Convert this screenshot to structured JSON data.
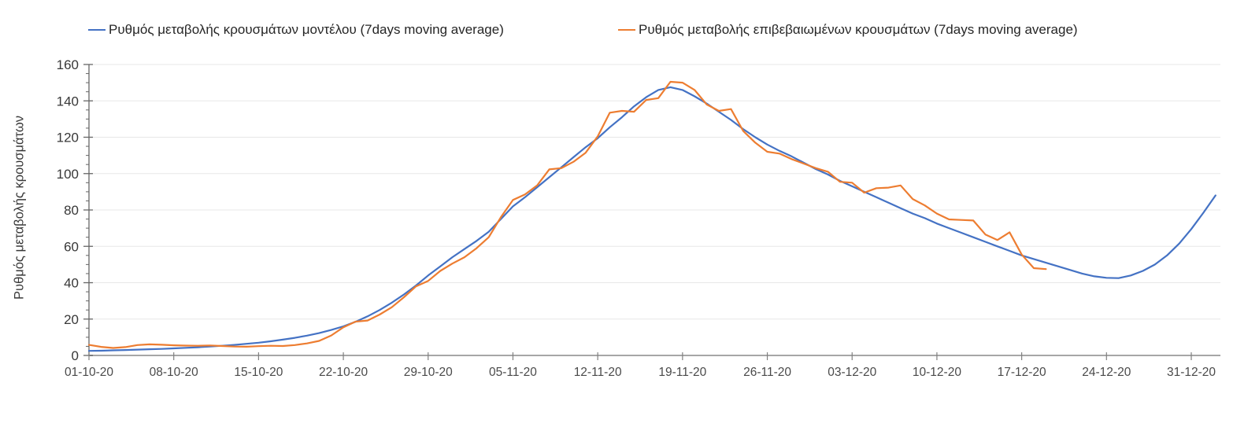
{
  "chart_data": {
    "type": "line",
    "title": "",
    "xlabel": "",
    "ylabel": "Ρυθμός μεταβολής κρουσμάτων",
    "ylim": [
      0,
      160
    ],
    "y_tick_step": 20,
    "y_minor_tick_step": 5,
    "y_tick_labels": [
      "0",
      "20",
      "40",
      "60",
      "80",
      "100",
      "120",
      "140",
      "160"
    ],
    "grid": "horizontal-major",
    "legend_position": "top",
    "x_start_date": "01-10-20",
    "x_tick_days": [
      0,
      7,
      14,
      21,
      28,
      35,
      42,
      49,
      56,
      63,
      70,
      77,
      84,
      91
    ],
    "x_tick_labels": [
      "01-10-20",
      "08-10-20",
      "15-10-20",
      "22-10-20",
      "29-10-20",
      "05-11-20",
      "12-11-20",
      "19-11-20",
      "26-11-20",
      "03-12-20",
      "10-12-20",
      "17-12-20",
      "24-12-20",
      "31-12-20"
    ],
    "series": [
      {
        "name": "Ρυθμός μεταβολής κρουσμάτων μοντέλου (7days moving average)",
        "color": "#4472c4",
        "start_day": 0,
        "start_date": "01-10-20",
        "values": [
          2.5,
          2.6,
          2.8,
          3.0,
          3.2,
          3.4,
          3.6,
          3.9,
          4.2,
          4.5,
          4.9,
          5.3,
          5.8,
          6.4,
          7.0,
          7.8,
          8.7,
          9.7,
          10.9,
          12.3,
          14.0,
          16.0,
          18.5,
          21.5,
          25.0,
          29.0,
          33.5,
          38.5,
          44.0,
          49.0,
          54.0,
          58.5,
          63.0,
          68.0,
          75.0,
          82.0,
          87.0,
          92.5,
          98.0,
          103.5,
          109.0,
          114.5,
          119.5,
          125.5,
          131.0,
          137.0,
          142.0,
          146.0,
          147.5,
          146.0,
          142.5,
          138.5,
          134.0,
          129.5,
          124.5,
          120.0,
          116.0,
          112.5,
          109.5,
          106.0,
          102.5,
          99.5,
          96.0,
          93.0,
          90.0,
          87.0,
          84.0,
          81.0,
          78.0,
          75.5,
          72.5,
          70.0,
          67.5,
          65.0,
          62.5,
          60.0,
          57.5,
          55.0,
          53.0,
          51.0,
          49.0,
          47.0,
          45.0,
          43.5,
          42.7,
          42.5,
          44.0,
          46.5,
          50.0,
          55.0,
          61.5,
          69.5,
          78.5,
          88.0
        ]
      },
      {
        "name": "Ρυθμός μεταβολής επιβεβαιωμένων κρουσμάτων (7days moving average)",
        "color": "#ed7d31",
        "start_day": 0,
        "start_date": "01-10-20",
        "values": [
          5.8,
          4.7,
          4.1,
          4.6,
          5.7,
          6.1,
          5.9,
          5.6,
          5.4,
          5.3,
          5.5,
          5.2,
          4.9,
          4.8,
          5.1,
          5.3,
          5.2,
          5.7,
          6.6,
          8.0,
          11.0,
          15.5,
          18.6,
          19.2,
          22.5,
          26.5,
          32.0,
          38.0,
          41.0,
          46.5,
          50.5,
          54.0,
          59.0,
          65.0,
          76.0,
          85.5,
          88.5,
          93.5,
          102.3,
          103.0,
          106.5,
          111.5,
          120.5,
          133.5,
          134.5,
          134.0,
          140.5,
          141.5,
          150.5,
          150.0,
          146.0,
          138.0,
          134.5,
          135.5,
          123.5,
          117.0,
          112.0,
          111.0,
          108.0,
          105.5,
          103.0,
          101.0,
          95.5,
          95.0,
          89.5,
          92.0,
          92.3,
          93.5,
          86.0,
          82.5,
          78.0,
          74.8,
          74.5,
          74.2,
          66.5,
          63.5,
          67.7,
          55.5,
          48.0,
          47.5
        ]
      }
    ]
  },
  "style": {
    "grid_color": "#e7e7e7",
    "y_axis_color": "#666666",
    "x_axis_color": "#a6a6a6",
    "y_tick_label_color": "#383838",
    "x_tick_label_color": "#4a4a4a",
    "legend_text_color": "#262626"
  }
}
